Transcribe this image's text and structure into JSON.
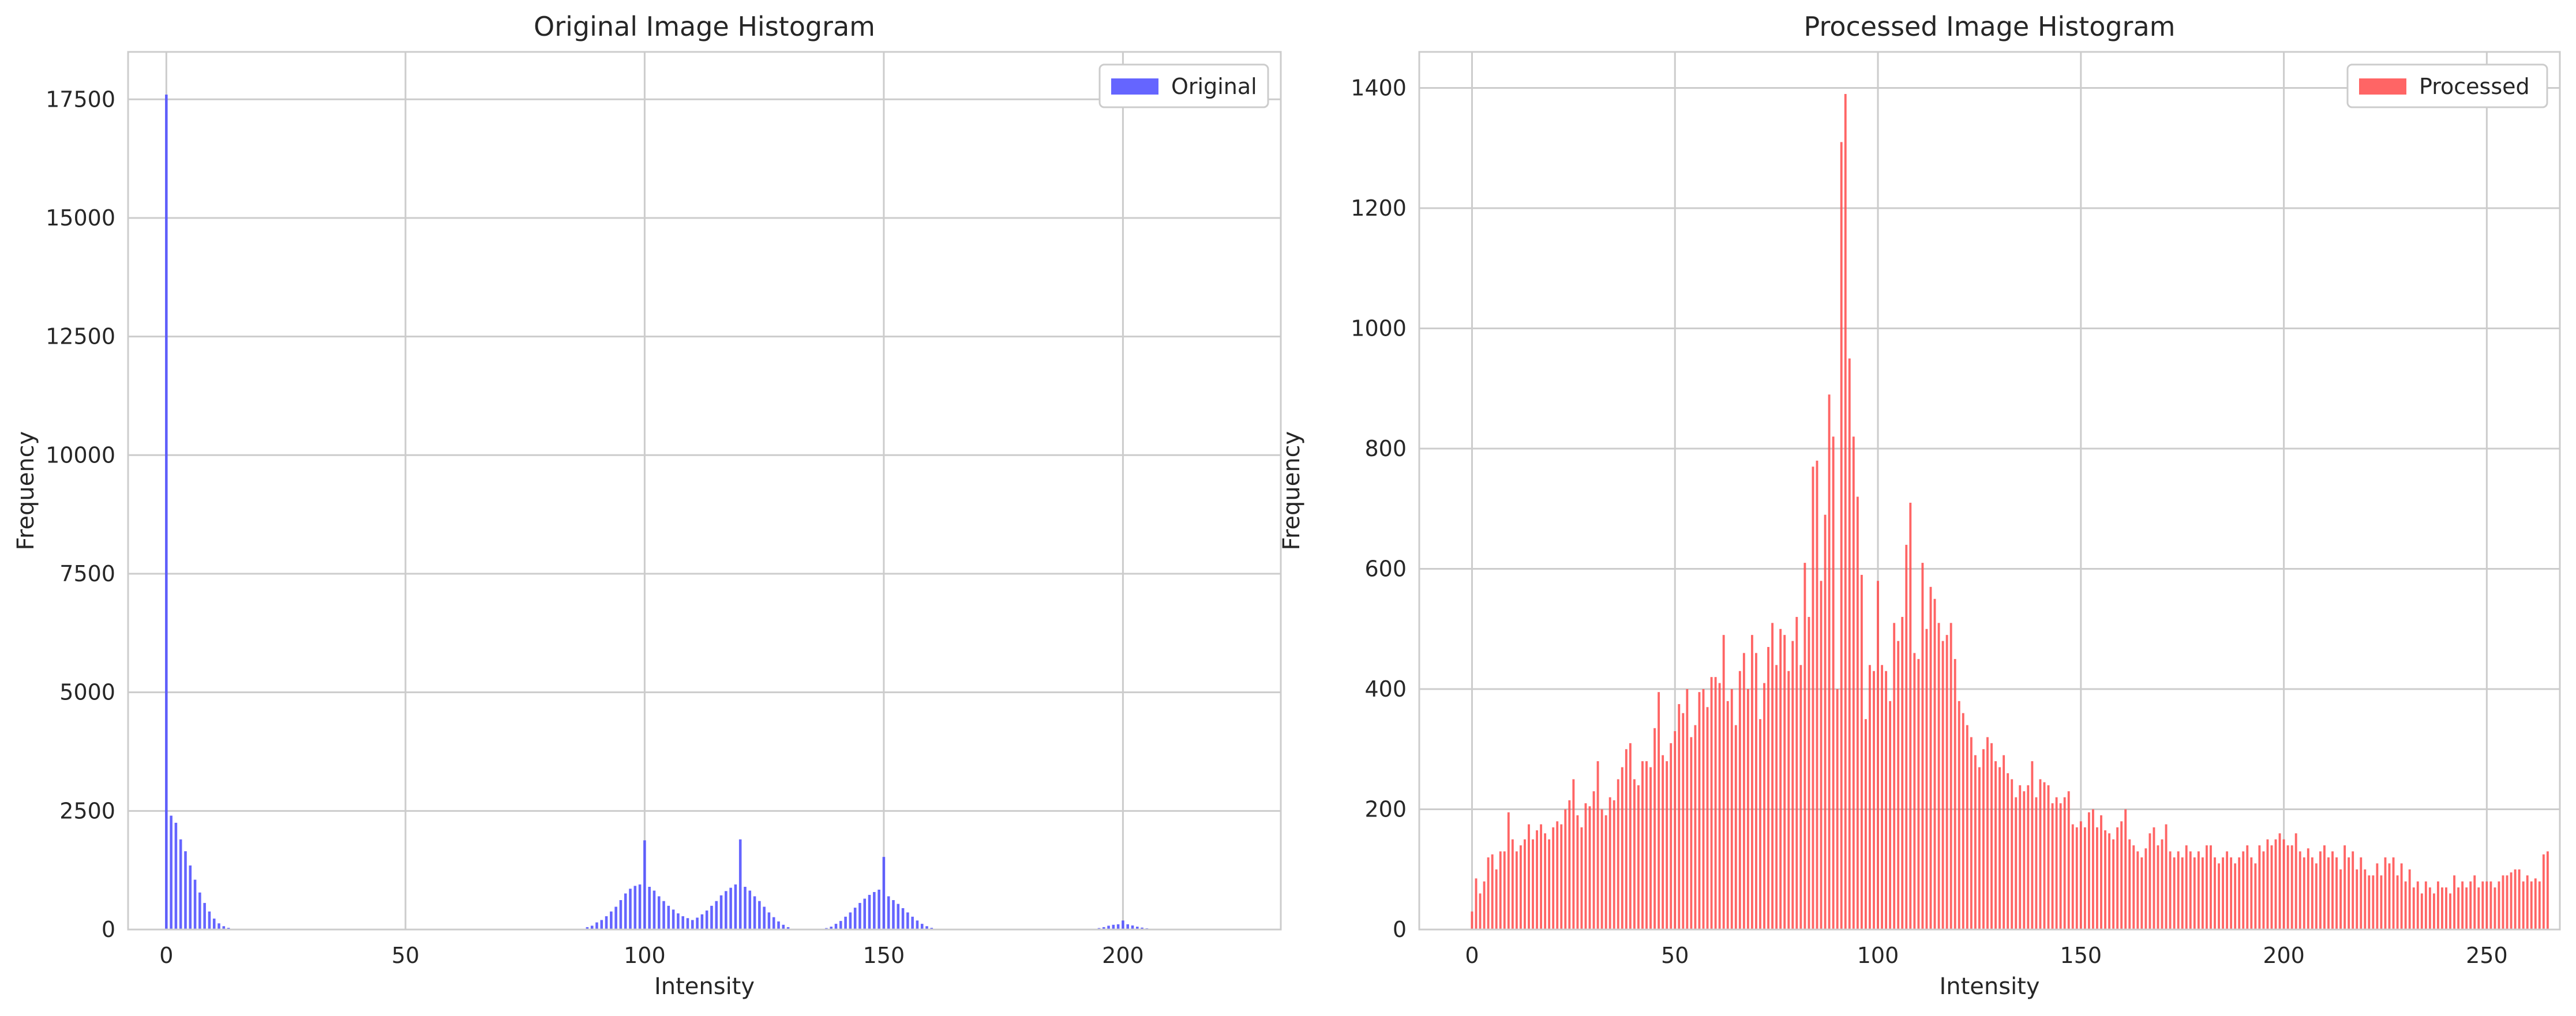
{
  "chart_data": [
    {
      "type": "bar",
      "title": "Original Image Histogram",
      "xlabel": "Intensity",
      "ylabel": "Frequency",
      "xlim": [
        -8,
        233
      ],
      "ylim": [
        0,
        18500
      ],
      "xticks": [
        0,
        50,
        100,
        150,
        200
      ],
      "yticks": [
        0,
        2500,
        5000,
        7500,
        10000,
        12500,
        15000,
        17500
      ],
      "grid": true,
      "legend_position": "top-right",
      "series": [
        {
          "name": "Original",
          "color": "#4a4aff",
          "points": [
            [
              0,
              17600
            ],
            [
              1,
              2400
            ],
            [
              2,
              2250
            ],
            [
              3,
              1900
            ],
            [
              4,
              1650
            ],
            [
              5,
              1350
            ],
            [
              6,
              1050
            ],
            [
              7,
              780
            ],
            [
              8,
              560
            ],
            [
              9,
              380
            ],
            [
              10,
              230
            ],
            [
              11,
              130
            ],
            [
              12,
              70
            ],
            [
              13,
              35
            ],
            [
              14,
              15
            ],
            [
              88,
              50
            ],
            [
              89,
              80
            ],
            [
              90,
              150
            ],
            [
              91,
              200
            ],
            [
              92,
              280
            ],
            [
              93,
              380
            ],
            [
              94,
              480
            ],
            [
              95,
              620
            ],
            [
              96,
              760
            ],
            [
              97,
              860
            ],
            [
              98,
              920
            ],
            [
              99,
              950
            ],
            [
              100,
              1880
            ],
            [
              101,
              900
            ],
            [
              102,
              820
            ],
            [
              103,
              700
            ],
            [
              104,
              600
            ],
            [
              105,
              500
            ],
            [
              106,
              420
            ],
            [
              107,
              340
            ],
            [
              108,
              280
            ],
            [
              109,
              240
            ],
            [
              110,
              200
            ],
            [
              111,
              250
            ],
            [
              112,
              320
            ],
            [
              113,
              400
            ],
            [
              114,
              500
            ],
            [
              115,
              600
            ],
            [
              116,
              720
            ],
            [
              117,
              810
            ],
            [
              118,
              880
            ],
            [
              119,
              950
            ],
            [
              120,
              1900
            ],
            [
              121,
              900
            ],
            [
              122,
              820
            ],
            [
              123,
              700
            ],
            [
              124,
              600
            ],
            [
              125,
              480
            ],
            [
              126,
              360
            ],
            [
              127,
              260
            ],
            [
              128,
              170
            ],
            [
              129,
              100
            ],
            [
              130,
              50
            ],
            [
              138,
              30
            ],
            [
              139,
              60
            ],
            [
              140,
              120
            ],
            [
              141,
              180
            ],
            [
              142,
              270
            ],
            [
              143,
              360
            ],
            [
              144,
              460
            ],
            [
              145,
              560
            ],
            [
              146,
              650
            ],
            [
              147,
              730
            ],
            [
              148,
              790
            ],
            [
              149,
              840
            ],
            [
              150,
              1530
            ],
            [
              151,
              700
            ],
            [
              152,
              620
            ],
            [
              153,
              540
            ],
            [
              154,
              450
            ],
            [
              155,
              360
            ],
            [
              156,
              270
            ],
            [
              157,
              190
            ],
            [
              158,
              120
            ],
            [
              159,
              70
            ],
            [
              160,
              35
            ],
            [
              195,
              30
            ],
            [
              196,
              50
            ],
            [
              197,
              80
            ],
            [
              198,
              100
            ],
            [
              199,
              110
            ],
            [
              200,
              190
            ],
            [
              201,
              110
            ],
            [
              202,
              85
            ],
            [
              203,
              60
            ],
            [
              204,
              40
            ],
            [
              205,
              25
            ]
          ]
        }
      ]
    },
    {
      "type": "bar",
      "title": "Processed Image Histogram",
      "xlabel": "Intensity",
      "ylabel": "Frequency",
      "xlim": [
        -13,
        268
      ],
      "ylim": [
        0,
        1460
      ],
      "xticks": [
        0,
        50,
        100,
        150,
        200,
        250
      ],
      "yticks": [
        0,
        200,
        400,
        600,
        800,
        1000,
        1200,
        1400
      ],
      "grid": true,
      "legend_position": "top-right",
      "series": [
        {
          "name": "Processed",
          "color": "#ff4a4a",
          "values": [
            30,
            85,
            60,
            80,
            120,
            125,
            100,
            130,
            130,
            195,
            150,
            130,
            140,
            150,
            175,
            150,
            165,
            175,
            160,
            150,
            170,
            180,
            175,
            200,
            215,
            250,
            190,
            170,
            210,
            205,
            230,
            280,
            200,
            190,
            220,
            215,
            250,
            270,
            300,
            310,
            250,
            240,
            280,
            280,
            270,
            335,
            395,
            290,
            280,
            310,
            330,
            375,
            360,
            400,
            320,
            340,
            395,
            400,
            370,
            420,
            420,
            410,
            490,
            380,
            400,
            340,
            430,
            460,
            400,
            490,
            460,
            350,
            410,
            470,
            510,
            440,
            500,
            490,
            430,
            480,
            520,
            440,
            610,
            520,
            770,
            780,
            580,
            690,
            890,
            820,
            400,
            1310,
            1390,
            950,
            820,
            720,
            590,
            350,
            440,
            430,
            580,
            440,
            430,
            380,
            510,
            480,
            520,
            640,
            710,
            460,
            450,
            610,
            500,
            570,
            550,
            510,
            480,
            490,
            510,
            450,
            380,
            360,
            340,
            320,
            290,
            270,
            300,
            320,
            310,
            280,
            270,
            290,
            260,
            250,
            220,
            240,
            230,
            240,
            280,
            220,
            250,
            245,
            240,
            210,
            220,
            210,
            220,
            230,
            175,
            170,
            180,
            170,
            195,
            200,
            170,
            190,
            165,
            160,
            150,
            170,
            180,
            200,
            150,
            140,
            130,
            120,
            135,
            160,
            170,
            140,
            150,
            175,
            130,
            120,
            130,
            120,
            140,
            130,
            120,
            130,
            120,
            140,
            140,
            120,
            110,
            120,
            130,
            120,
            110,
            120,
            130,
            140,
            120,
            110,
            140,
            130,
            150,
            140,
            150,
            160,
            150,
            140,
            140,
            160,
            130,
            120,
            135,
            120,
            110,
            130,
            140,
            120,
            130,
            120,
            100,
            140,
            120,
            130,
            100,
            120,
            100,
            90,
            90,
            110,
            90,
            120,
            110,
            120,
            90,
            110,
            80,
            100,
            70,
            80,
            60,
            80,
            70,
            60,
            80,
            70,
            70,
            60,
            90,
            70,
            80,
            70,
            80,
            90,
            70,
            80,
            80,
            80,
            70,
            80,
            90,
            90,
            95,
            100,
            100,
            80,
            90,
            80,
            85,
            80,
            125,
            130
          ]
        }
      ]
    }
  ]
}
